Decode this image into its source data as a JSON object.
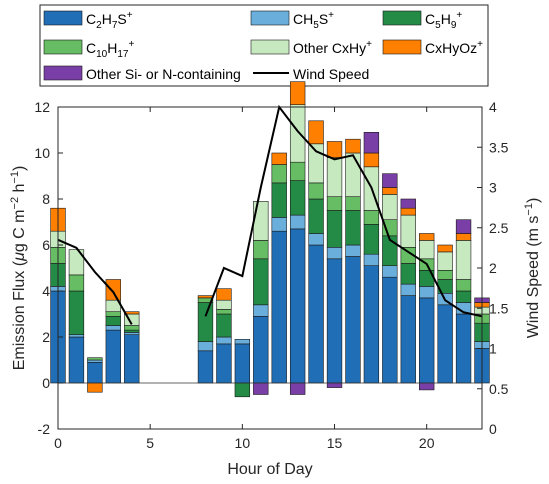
{
  "chart_data": {
    "type": "bar",
    "stacked": true,
    "xlabel": "Hour of Day",
    "ylabel_left": "Emission Flux (μg C m⁻² h⁻¹)",
    "ylabel_right": "Wind Speed (m s⁻¹)",
    "xlim": [
      0,
      23
    ],
    "ylim_left": [
      -2,
      12
    ],
    "ylim_right": [
      0,
      4
    ],
    "xticks": [
      "0",
      "5",
      "10",
      "15",
      "20"
    ],
    "yticks_left": [
      "-2",
      "0",
      "2",
      "4",
      "6",
      "8",
      "10",
      "12"
    ],
    "yticks_right": [
      "0",
      "0.5",
      "1",
      "1.5",
      "2",
      "2.5",
      "3",
      "3.5",
      "4"
    ],
    "hours": [
      0,
      1,
      2,
      3,
      4,
      5,
      6,
      7,
      8,
      9,
      10,
      11,
      12,
      13,
      14,
      15,
      16,
      17,
      18,
      19,
      20,
      21,
      22,
      23
    ],
    "series": [
      {
        "name": "C2H7S+",
        "color": "#1f6eb6",
        "values": [
          4.0,
          2.0,
          0.9,
          2.3,
          2.1,
          0,
          0,
          0,
          1.4,
          1.7,
          1.7,
          2.9,
          6.6,
          6.7,
          6.0,
          5.4,
          5.5,
          5.1,
          4.6,
          3.8,
          3.7,
          3.4,
          3.0,
          1.5
        ]
      },
      {
        "name": "CH5S+",
        "color": "#6aaedb",
        "values": [
          0.2,
          0.1,
          0.1,
          0.2,
          0.1,
          0,
          0,
          0,
          0.4,
          0.3,
          0.2,
          0.5,
          0.6,
          0.6,
          0.5,
          0.5,
          0.5,
          0.5,
          0.5,
          0.5,
          0.5,
          0.5,
          0.5,
          0.3
        ]
      },
      {
        "name": "C5H9+",
        "color": "#238b45",
        "values": [
          1.0,
          1.9,
          0,
          0.4,
          0.1,
          0,
          0,
          0,
          1.7,
          1.0,
          0,
          2.0,
          1.5,
          1.5,
          1.5,
          1.6,
          1.5,
          1.3,
          1.3,
          0.9,
          0.7,
          0.6,
          0.5,
          0.8
        ]
      },
      {
        "name": "C10H17+",
        "color": "#66bd63",
        "values": [
          0.7,
          0.7,
          0.1,
          0.2,
          0.2,
          0,
          0,
          0,
          0.2,
          0.2,
          0,
          0.8,
          0.8,
          0.8,
          0.7,
          0.6,
          0.6,
          0.6,
          0.7,
          0.7,
          0.5,
          0.4,
          0.5,
          0.4
        ]
      },
      {
        "name": "Other CxHy+",
        "color": "#c7e9c0",
        "values": [
          0.7,
          1.1,
          0,
          0.5,
          0.5,
          0,
          0,
          0,
          0,
          0.4,
          0,
          1.7,
          0,
          2.5,
          1.7,
          1.7,
          1.9,
          1.9,
          1.1,
          1.4,
          0.8,
          0.8,
          1.7,
          0.3
        ]
      },
      {
        "name": "CxHyOz+",
        "color": "#ff7f00",
        "values": [
          1.0,
          0,
          -0.4,
          0.9,
          0.1,
          0,
          0,
          0,
          0.1,
          0.5,
          0,
          0,
          0.5,
          1.0,
          1.0,
          0.7,
          0.6,
          0.6,
          0.3,
          0.3,
          0.3,
          0.3,
          0.3,
          0.2
        ]
      },
      {
        "name": "Other Si- or N-containing",
        "color": "#7a3fa6",
        "values": [
          0,
          0,
          0,
          0,
          0,
          0,
          0,
          0,
          0,
          0,
          0,
          0,
          0,
          0,
          0,
          0,
          0,
          0.9,
          0.6,
          0.4,
          0,
          0,
          0.6,
          0.2
        ]
      }
    ],
    "negatives": [
      {
        "name": "C5H9+",
        "hour": 10,
        "value": -0.6
      },
      {
        "name": "Other Si- or N-containing",
        "hour": 11,
        "value": -0.5
      },
      {
        "name": "Other Si- or N-containing",
        "hour": 13,
        "value": -0.5
      },
      {
        "name": "Other Si- or N-containing",
        "hour": 15,
        "value": -0.2
      },
      {
        "name": "Other Si- or N-containing",
        "hour": 20,
        "value": -0.3
      }
    ],
    "wind_speed": {
      "name": "Wind Speed",
      "color": "#000000",
      "segments": [
        {
          "x": [
            0,
            1,
            2,
            3,
            4
          ],
          "y": [
            2.35,
            2.25,
            1.95,
            1.7,
            1.3
          ]
        },
        {
          "x": [
            8,
            9,
            10,
            11,
            12,
            13,
            14,
            15,
            16,
            17,
            18,
            19,
            20,
            21,
            22,
            23
          ],
          "y": [
            1.4,
            2.0,
            1.9,
            3.0,
            4.0,
            3.7,
            3.45,
            3.35,
            3.4,
            3.0,
            2.35,
            2.2,
            2.05,
            1.6,
            1.45,
            1.4
          ]
        }
      ]
    },
    "legend": {
      "placement": "top",
      "entries": [
        {
          "key": "l0",
          "color": "#1f6eb6",
          "type": "patch"
        },
        {
          "key": "l1",
          "color": "#6aaedb",
          "type": "patch"
        },
        {
          "key": "l2",
          "color": "#238b45",
          "type": "patch"
        },
        {
          "key": "l3",
          "color": "#66bd63",
          "type": "patch"
        },
        {
          "key": "l4",
          "color": "#c7e9c0",
          "type": "patch"
        },
        {
          "key": "l5",
          "color": "#ff7f00",
          "type": "patch"
        },
        {
          "key": "l6",
          "color": "#7a3fa6",
          "type": "patch"
        },
        {
          "key": "l7",
          "color": "#000000",
          "type": "line"
        }
      ],
      "labels": {
        "l0": "C2H7S+",
        "l1": "CH5S+",
        "l2": "C5H9+",
        "l3": "C10H17+",
        "l4": "Other CxHy+",
        "l5": "CxHyOz+",
        "l6": "Other Si- or N-containing",
        "l7": "Wind Speed"
      }
    }
  }
}
